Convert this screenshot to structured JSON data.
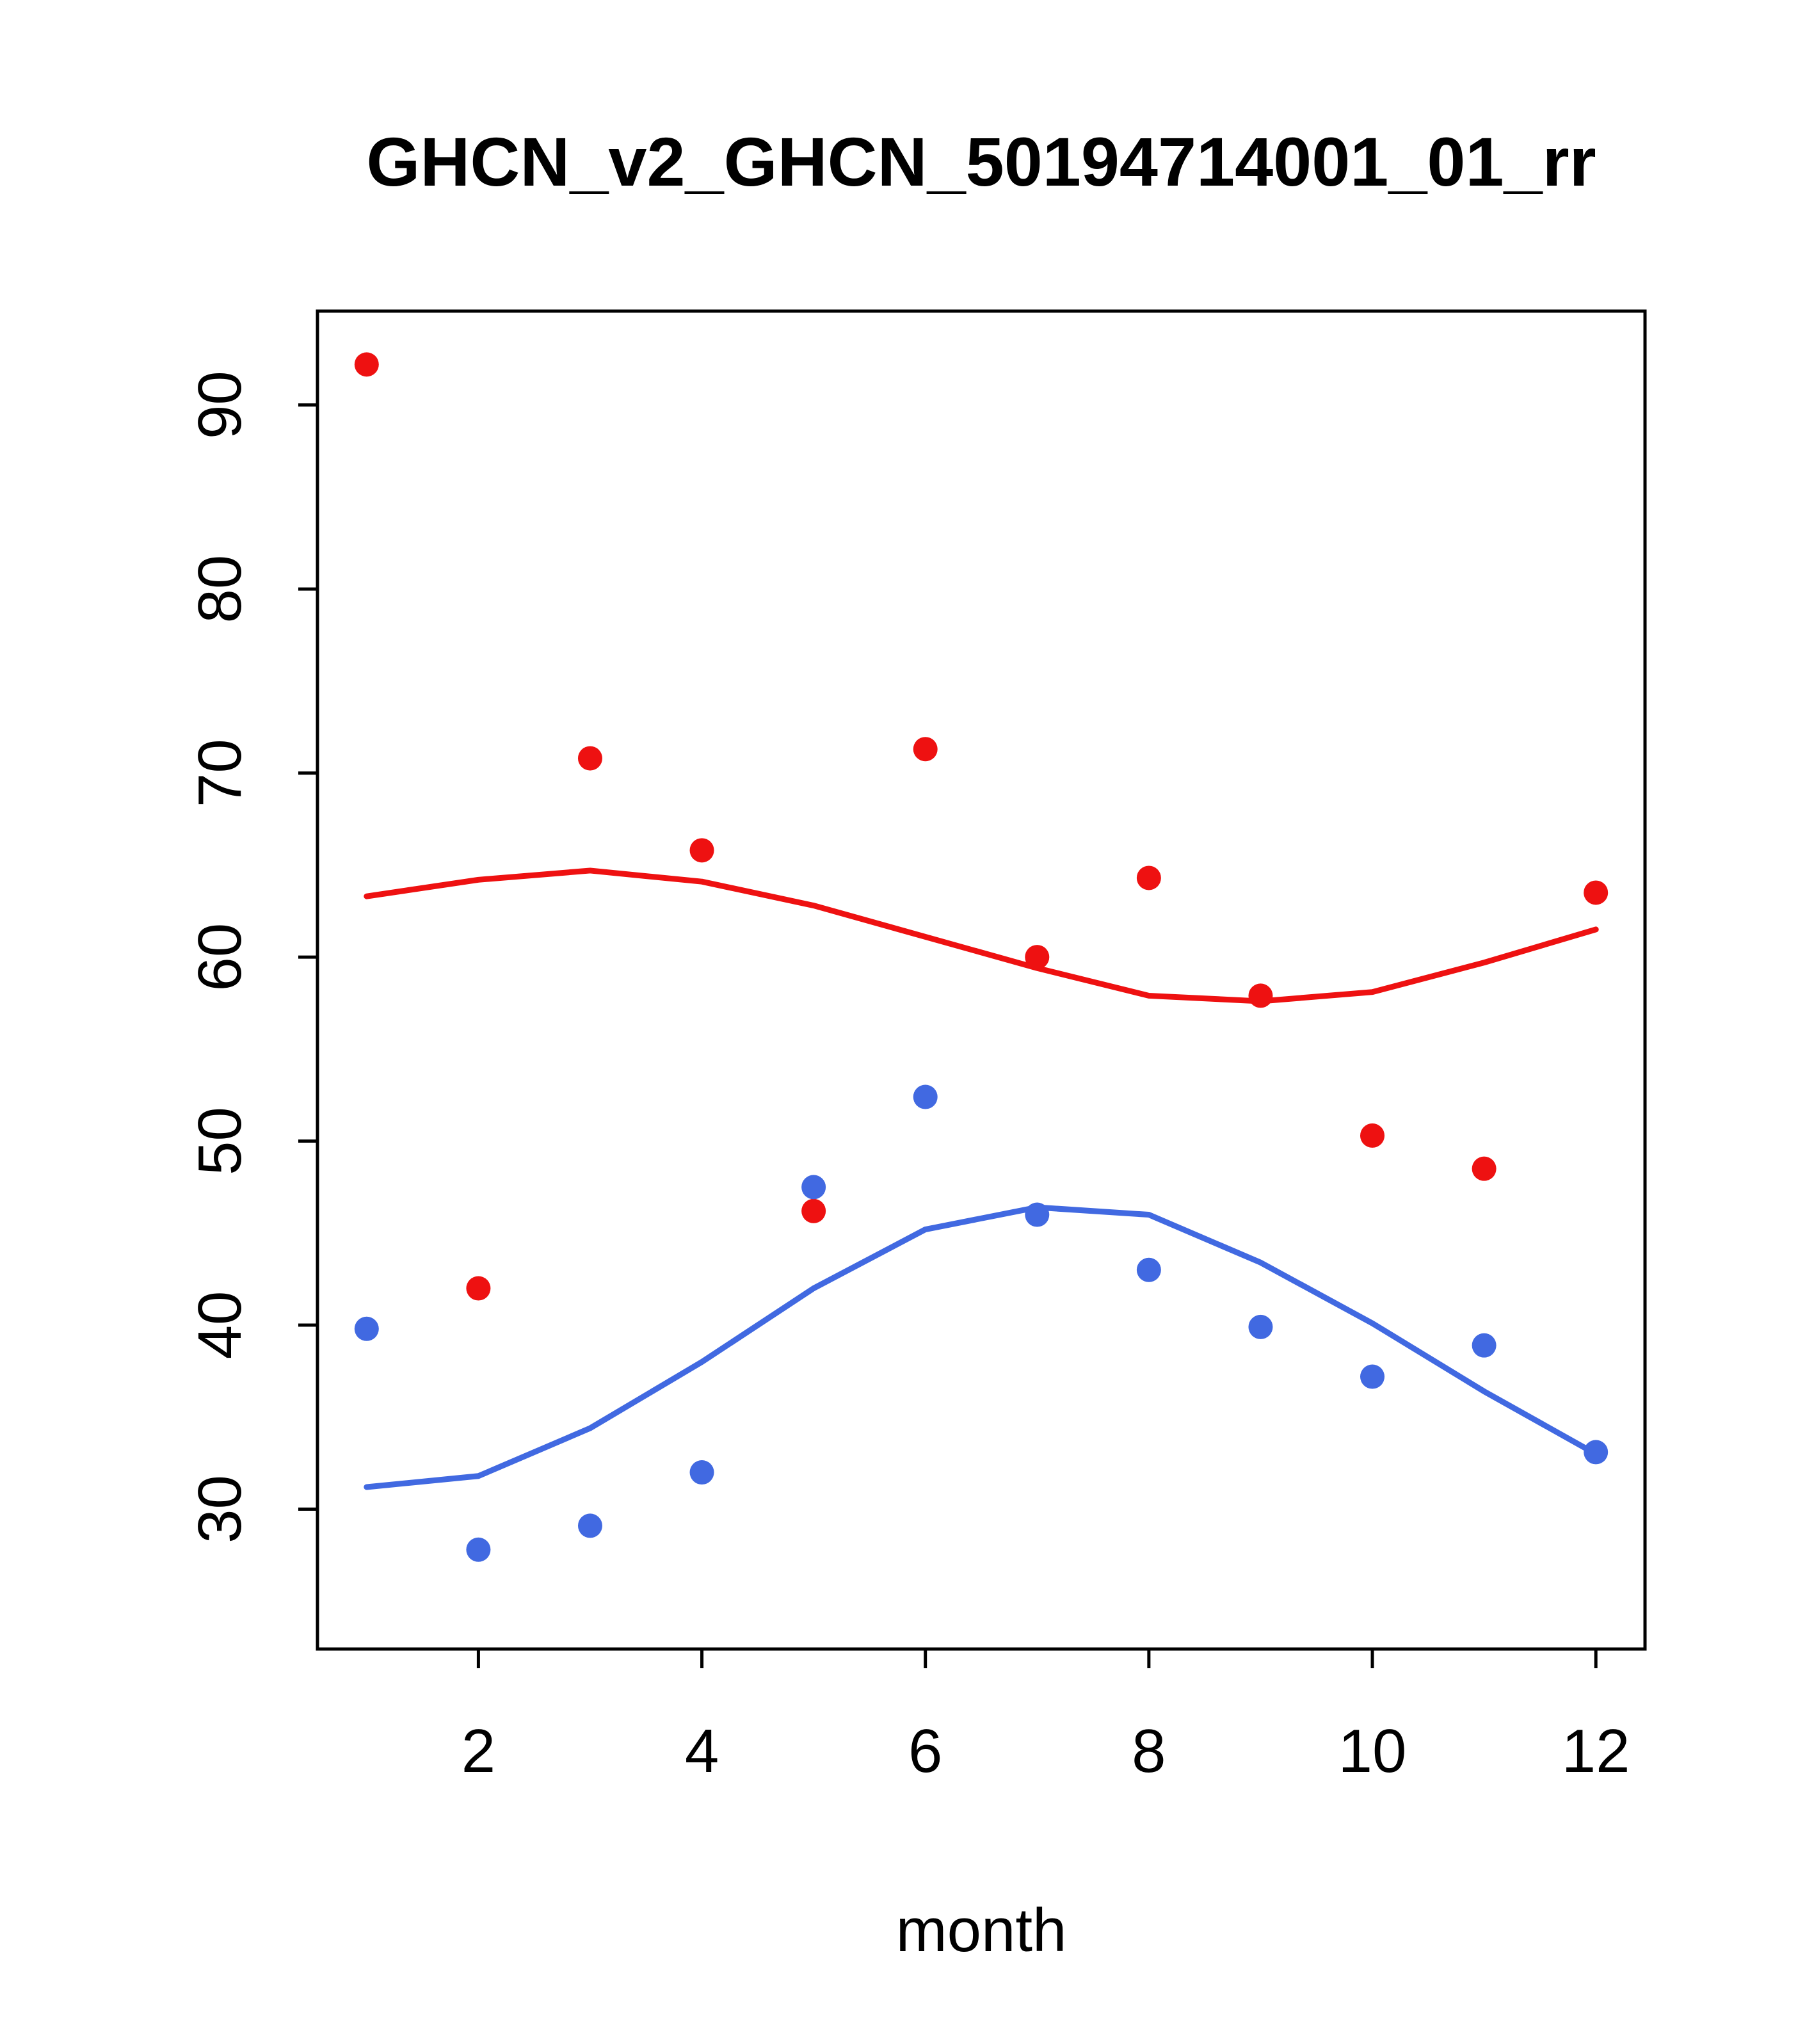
{
  "chart_data": {
    "type": "scatter",
    "title": "GHCN_v2_GHCN_50194714001_01_rr",
    "xlabel": "month",
    "ylabel": "",
    "x": [
      1,
      2,
      3,
      4,
      5,
      6,
      7,
      8,
      9,
      10,
      11,
      12
    ],
    "xticks": [
      2,
      4,
      6,
      8,
      10,
      12
    ],
    "yticks": [
      30,
      40,
      50,
      60,
      70,
      80,
      90
    ],
    "xlim": [
      0.56,
      12.44
    ],
    "ylim": [
      22.4,
      95.1
    ],
    "grid": false,
    "legend": "none",
    "colors": {
      "red": "#ee1111",
      "blue": "#4169e1",
      "axis": "#000000",
      "background": "#ffffff"
    },
    "series": [
      {
        "name": "red-smooth",
        "type": "line",
        "color": "#ee1111",
        "values": [
          63.3,
          64.2,
          64.7,
          64.1,
          62.8,
          61.1,
          59.4,
          57.9,
          57.6,
          58.1,
          59.7,
          61.5
        ]
      },
      {
        "name": "blue-smooth",
        "type": "line",
        "color": "#4169e1",
        "values": [
          31.2,
          31.8,
          34.4,
          38.0,
          42.0,
          45.2,
          46.4,
          46.0,
          43.4,
          40.1,
          36.4,
          33.0
        ]
      },
      {
        "name": "red-points",
        "type": "points",
        "color": "#ee1111",
        "values": [
          92.2,
          42.0,
          70.8,
          65.8,
          46.2,
          71.3,
          60.0,
          64.3,
          57.9,
          50.3,
          48.5,
          63.5
        ]
      },
      {
        "name": "blue-points",
        "type": "points",
        "color": "#4169e1",
        "values": [
          39.8,
          27.8,
          29.1,
          32.0,
          47.5,
          52.4,
          46.0,
          43.0,
          39.9,
          37.2,
          38.9,
          33.1
        ]
      }
    ]
  }
}
